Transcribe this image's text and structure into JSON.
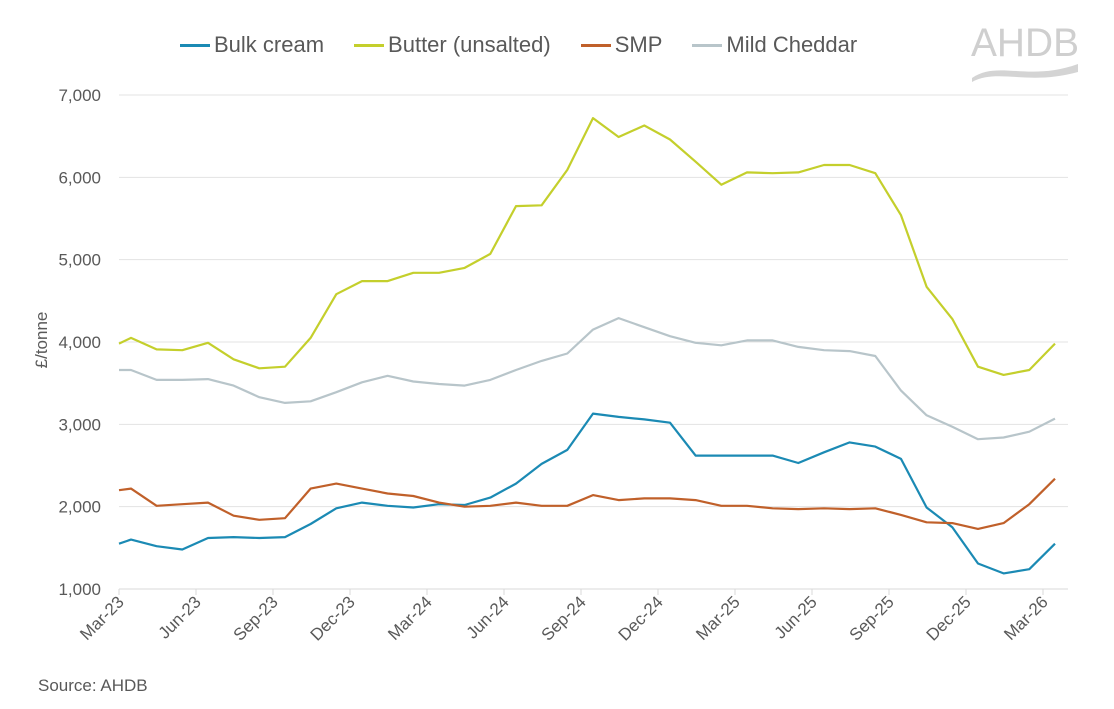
{
  "chart_data": {
    "type": "line",
    "title": "",
    "ylabel": "£/tonne",
    "xlabel": "",
    "ylim": [
      1000,
      7000
    ],
    "yticks": [
      "1,000",
      "2,000",
      "3,000",
      "4,000",
      "5,000",
      "6,000",
      "7,000"
    ],
    "ytick_values": [
      1000,
      2000,
      3000,
      4000,
      5000,
      6000,
      7000
    ],
    "xticks": [
      "Mar-23",
      "Jun-23",
      "Sep-23",
      "Dec-23",
      "Mar-24",
      "Jun-24",
      "Sep-24",
      "Dec-24",
      "Mar-25",
      "Jun-25",
      "Sep-25",
      "Dec-25",
      "Mar-26"
    ],
    "grid": "horizontal",
    "legend_position": "top",
    "x": [
      "2023-03-01",
      "2023-03-15",
      "2023-04-15",
      "2023-05-15",
      "2023-06-15",
      "2023-07-15",
      "2023-08-15",
      "2023-09-15",
      "2023-10-15",
      "2023-11-15",
      "2023-12-15",
      "2024-01-15",
      "2024-02-15",
      "2024-03-15",
      "2024-04-15",
      "2024-05-15",
      "2024-06-15",
      "2024-07-15",
      "2024-08-15",
      "2024-09-15",
      "2024-10-15",
      "2024-11-15",
      "2024-12-15",
      "2025-01-15",
      "2025-02-15",
      "2025-03-15",
      "2025-04-15",
      "2025-05-15",
      "2025-06-15",
      "2025-07-15",
      "2025-08-15",
      "2025-09-15",
      "2025-10-15",
      "2025-11-15",
      "2025-12-15",
      "2026-01-15",
      "2026-02-15",
      "2026-03-15"
    ],
    "series": [
      {
        "name": "Bulk cream",
        "color": "#1b8ab4",
        "values": [
          1550,
          1600,
          1520,
          1480,
          1620,
          1630,
          1620,
          1630,
          1790,
          1980,
          2050,
          2010,
          1990,
          2030,
          2020,
          2110,
          2280,
          2520,
          2690,
          3130,
          3090,
          3060,
          3020,
          2620,
          2620,
          2620,
          2620,
          2530,
          2660,
          2780,
          2730,
          2580,
          1990,
          1750,
          1310,
          1190,
          1240,
          1550
        ]
      },
      {
        "name": "Butter (unsalted)",
        "color": "#c4cf2c",
        "values": [
          3980,
          4050,
          3910,
          3900,
          3990,
          3790,
          3680,
          3700,
          4050,
          4580,
          4740,
          4740,
          4840,
          4840,
          4900,
          5070,
          5650,
          5660,
          6090,
          6720,
          6490,
          6630,
          6460,
          6190,
          5910,
          6060,
          6050,
          6060,
          6150,
          6150,
          6050,
          5540,
          4670,
          4280,
          3700,
          3600,
          3660,
          3980
        ]
      },
      {
        "name": "SMP",
        "color": "#c0602a",
        "values": [
          2200,
          2220,
          2010,
          2030,
          2050,
          1890,
          1840,
          1860,
          2220,
          2280,
          2220,
          2160,
          2130,
          2050,
          2000,
          2010,
          2050,
          2010,
          2010,
          2140,
          2080,
          2100,
          2100,
          2080,
          2010,
          2010,
          1980,
          1970,
          1980,
          1970,
          1980,
          1900,
          1810,
          1800,
          1730,
          1800,
          2030,
          2340
        ]
      },
      {
        "name": "Mild Cheddar",
        "color": "#b8c5ca",
        "values": [
          3660,
          3660,
          3540,
          3540,
          3550,
          3470,
          3330,
          3260,
          3280,
          3390,
          3510,
          3590,
          3520,
          3490,
          3470,
          3540,
          3660,
          3770,
          3860,
          4150,
          4290,
          4180,
          4070,
          3990,
          3960,
          4020,
          4020,
          3940,
          3900,
          3890,
          3830,
          3410,
          3110,
          2970,
          2820,
          2840,
          2910,
          3070
        ]
      }
    ]
  },
  "source": "Source: AHDB",
  "logo": {
    "text": "AHDB",
    "color": "#c8c8c8"
  }
}
